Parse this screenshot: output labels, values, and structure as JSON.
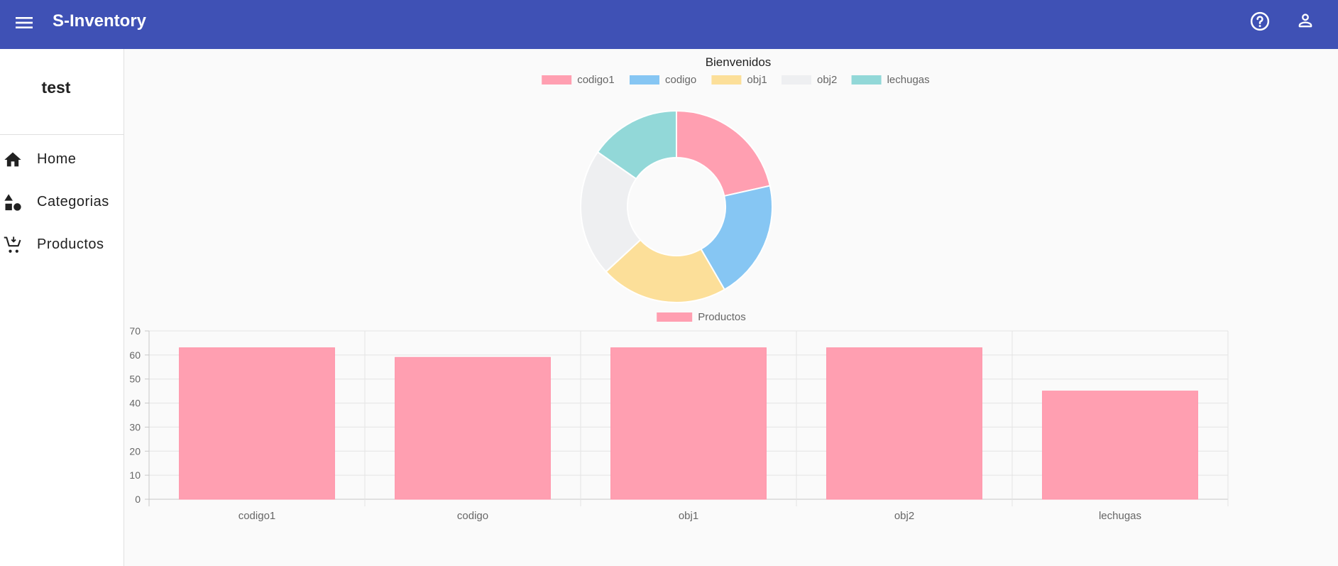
{
  "app": {
    "title": "S-Inventory",
    "menu_icon": "menu-icon",
    "help_icon": "help-circle-icon",
    "account_icon": "account-icon",
    "topbar_color": "#3f51b5"
  },
  "sidebar": {
    "user_name": "test",
    "items": [
      {
        "label": "Home",
        "icon": "home-icon"
      },
      {
        "label": "Categorias",
        "icon": "category-shapes-icon"
      },
      {
        "label": "Productos",
        "icon": "shopping-cart-icon"
      }
    ]
  },
  "chart_data": [
    {
      "type": "pie",
      "variant": "doughnut",
      "title": "Bienvenidos",
      "legend_position": "top",
      "labels": [
        "codigo1",
        "codigo",
        "obj1",
        "obj2",
        "lechugas"
      ],
      "values": [
        63,
        59,
        63,
        63,
        45
      ],
      "colors": [
        "#ff9fb1",
        "#86c6f3",
        "#fcdf99",
        "#eeeff1",
        "#92d8d8"
      ]
    },
    {
      "type": "bar",
      "legend_position": "top",
      "categories": [
        "codigo1",
        "codigo",
        "obj1",
        "obj2",
        "lechugas"
      ],
      "series": [
        {
          "name": "Productos",
          "values": [
            63,
            59,
            63,
            63,
            45
          ],
          "color": "#ff9fb1"
        }
      ],
      "ylim": [
        0,
        70
      ],
      "yticks": [
        0,
        10,
        20,
        30,
        40,
        50,
        60,
        70
      ],
      "grid": true
    }
  ]
}
